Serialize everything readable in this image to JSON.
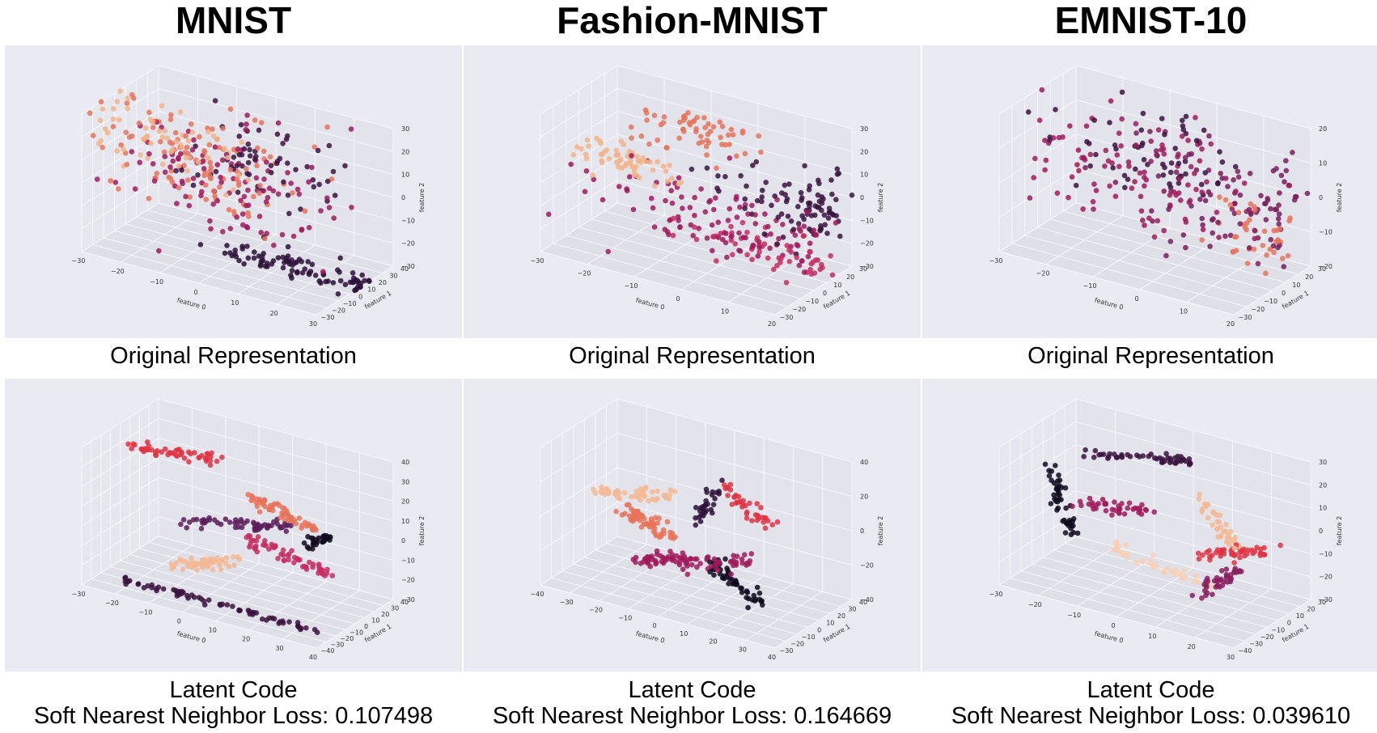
{
  "chart_data": [
    {
      "type": "scatter",
      "title": "MNIST",
      "panels": [
        {
          "caption": "Original Representation",
          "xlabel": "feature 0",
          "ylabel": "feature 1",
          "zlabel": "feature 2",
          "xticks": [
            -30,
            -20,
            -10,
            0,
            10,
            20,
            30
          ],
          "yticks": [
            -30,
            -20,
            -10,
            0,
            10,
            20,
            30,
            40
          ],
          "zticks": [
            -30,
            -20,
            -10,
            0,
            10,
            20,
            30
          ],
          "structure": "blob",
          "clusters": [
            {
              "x": -10,
              "y": 0,
              "z": 10,
              "sx": 14,
              "sy": 14,
              "sz": 10,
              "color": "#e8735a",
              "n": 110
            },
            {
              "x": 0,
              "y": 0,
              "z": 5,
              "sx": 14,
              "sy": 14,
              "sz": 12,
              "color": "#a11a5b",
              "n": 110
            },
            {
              "x": 5,
              "y": 5,
              "z": 15,
              "sx": 10,
              "sy": 10,
              "sz": 8,
              "color": "#3b1340",
              "n": 60
            },
            {
              "x": -15,
              "y": -5,
              "z": 18,
              "sx": 10,
              "sy": 10,
              "sz": 6,
              "color": "#f3b38a",
              "n": 60
            },
            {
              "x": 15,
              "y": 10,
              "z": -30,
              "sx": 12,
              "sy": 6,
              "sz": 3,
              "color": "#2d1038",
              "n": 90
            }
          ]
        },
        {
          "caption": "Latent Code",
          "subcaption": "Soft Nearest Neighbor Loss: 0.107498",
          "xlabel": "feature 0",
          "ylabel": "feature 1",
          "zlabel": "feature 2",
          "xticks": [
            -30,
            -20,
            -10,
            0,
            10,
            20,
            30,
            40
          ],
          "yticks": [
            -40,
            -30,
            -20,
            -10,
            0,
            10,
            20,
            30,
            40
          ],
          "zticks": [
            -30,
            -20,
            -10,
            0,
            10,
            20,
            30,
            40
          ],
          "structure": "arcs",
          "clusters": [
            {
              "x": -15,
              "y": 5,
              "z": 30,
              "sx": 8,
              "sy": 2,
              "sz": 2,
              "color": "#e13342",
              "n": 50
            },
            {
              "x": 15,
              "y": 10,
              "z": 12,
              "sx": 6,
              "sy": 2,
              "sz": 3,
              "color": "#e8735a",
              "n": 60
            },
            {
              "x": 5,
              "y": 0,
              "z": 5,
              "sx": 10,
              "sy": 3,
              "sz": 4,
              "color": "#5c1e5b",
              "n": 60
            },
            {
              "x": 20,
              "y": 0,
              "z": -5,
              "sx": 8,
              "sy": 3,
              "sz": 3,
              "color": "#c72d61",
              "n": 60
            },
            {
              "x": -5,
              "y": 0,
              "z": -20,
              "sx": 5,
              "sy": 3,
              "sz": 3,
              "color": "#f5b894",
              "n": 50
            },
            {
              "x": 5,
              "y": -20,
              "z": -35,
              "sx": 18,
              "sy": 2,
              "sz": 2,
              "color": "#3b1340",
              "n": 70
            },
            {
              "x": 28,
              "y": 5,
              "z": 5,
              "sx": 2,
              "sy": 2,
              "sz": 3,
              "color": "#0f0a1e",
              "n": 30
            }
          ]
        }
      ]
    },
    {
      "type": "scatter",
      "title": "Fashion-MNIST",
      "panels": [
        {
          "caption": "Original Representation",
          "xlabel": "feature 0",
          "ylabel": "feature 1",
          "zlabel": "feature 2",
          "xticks": [
            -30,
            -20,
            -10,
            0,
            10,
            20
          ],
          "yticks": [
            -30,
            -20,
            -10,
            0,
            10,
            20,
            30
          ],
          "zticks": [
            -30,
            -20,
            -10,
            0,
            10,
            20,
            30
          ],
          "structure": "loop",
          "clusters": [
            {
              "x": -5,
              "y": 0,
              "z": 25,
              "sx": 6,
              "sy": 4,
              "sz": 6,
              "color": "#e8735a",
              "n": 60
            },
            {
              "x": -20,
              "y": 0,
              "z": 5,
              "sx": 6,
              "sy": 4,
              "sz": 3,
              "color": "#f3b38a",
              "n": 60
            },
            {
              "x": 0,
              "y": 0,
              "z": -10,
              "sx": 14,
              "sy": 10,
              "sz": 8,
              "color": "#a11a5b",
              "n": 110
            },
            {
              "x": 15,
              "y": 10,
              "z": 0,
              "sx": 8,
              "sy": 10,
              "sz": 8,
              "color": "#3b1340",
              "n": 90
            },
            {
              "x": 10,
              "y": 5,
              "z": -20,
              "sx": 10,
              "sy": 6,
              "sz": 5,
              "color": "#c72d61",
              "n": 60
            }
          ]
        },
        {
          "caption": "Latent Code",
          "subcaption": "Soft Nearest Neighbor Loss: 0.164669",
          "xlabel": "feature 0",
          "ylabel": "feature 1",
          "zlabel": "feature 2",
          "xticks": [
            -40,
            -30,
            -20,
            -10,
            0,
            10,
            20,
            30,
            40
          ],
          "yticks": [
            -30,
            -20,
            -10,
            0,
            10,
            20,
            30,
            40
          ],
          "zticks": [
            -40,
            -20,
            0,
            20,
            40
          ],
          "structure": "strands",
          "clusters": [
            {
              "x": -20,
              "y": 0,
              "z": 10,
              "sx": 8,
              "sy": 3,
              "sz": 3,
              "color": "#f5b894",
              "n": 50
            },
            {
              "x": -15,
              "y": 0,
              "z": -5,
              "sx": 5,
              "sy": 3,
              "sz": 4,
              "color": "#e8735a",
              "n": 60
            },
            {
              "x": 5,
              "y": 0,
              "z": 15,
              "sx": 2,
              "sy": 2,
              "sz": 8,
              "color": "#2d1038",
              "n": 30
            },
            {
              "x": 20,
              "y": 0,
              "z": 20,
              "sx": 5,
              "sy": 2,
              "sz": 6,
              "color": "#e13342",
              "n": 40
            },
            {
              "x": 0,
              "y": 0,
              "z": -20,
              "sx": 12,
              "sy": 5,
              "sz": 5,
              "color": "#a11a5b",
              "n": 90
            },
            {
              "x": 15,
              "y": 0,
              "z": -25,
              "sx": 5,
              "sy": 3,
              "sz": 5,
              "color": "#0f0a1e",
              "n": 50
            }
          ]
        }
      ]
    },
    {
      "type": "scatter",
      "title": "EMNIST-10",
      "panels": [
        {
          "caption": "Original Representation",
          "xlabel": "feature 0",
          "ylabel": "feature 1",
          "zlabel": "feature 2",
          "xticks": [
            -30,
            -20,
            -10,
            0,
            10,
            20
          ],
          "yticks": [
            -30,
            -20,
            -10,
            0,
            10,
            20,
            30
          ],
          "zticks": [
            -20,
            -10,
            0,
            10,
            20
          ],
          "structure": "ring",
          "clusters": [
            {
              "x": -10,
              "y": 0,
              "z": 5,
              "sx": 12,
              "sy": 10,
              "sz": 8,
              "color": "#a11a5b",
              "n": 110
            },
            {
              "x": 10,
              "y": 5,
              "z": 0,
              "sx": 12,
              "sy": 10,
              "sz": 8,
              "color": "#7a1e5c",
              "n": 90
            },
            {
              "x": -5,
              "y": 0,
              "z": 10,
              "sx": 10,
              "sy": 8,
              "sz": 6,
              "color": "#3b1340",
              "n": 60
            },
            {
              "x": 15,
              "y": 5,
              "z": -8,
              "sx": 6,
              "sy": 6,
              "sz": 5,
              "color": "#e8735a",
              "n": 40
            }
          ]
        },
        {
          "caption": "Latent Code",
          "subcaption": "Soft Nearest Neighbor Loss: 0.039610",
          "xlabel": "feature 0",
          "ylabel": "feature 1",
          "zlabel": "feature 2",
          "xticks": [
            -30,
            -20,
            -10,
            0,
            10,
            20,
            30
          ],
          "yticks": [
            -40,
            -30,
            -20,
            -10,
            0,
            10,
            20,
            30
          ],
          "zticks": [
            -30,
            -20,
            -10,
            0,
            10,
            20,
            30
          ],
          "structure": "strands",
          "clusters": [
            {
              "x": -5,
              "y": 0,
              "z": 25,
              "sx": 8,
              "sy": 2,
              "sz": 3,
              "color": "#3b1340",
              "n": 50
            },
            {
              "x": -25,
              "y": 0,
              "z": -5,
              "sx": 2,
              "sy": 2,
              "sz": 10,
              "color": "#0f0a1e",
              "n": 50
            },
            {
              "x": -12,
              "y": 0,
              "z": 0,
              "sx": 6,
              "sy": 2,
              "sz": 2,
              "color": "#a11a5b",
              "n": 40
            },
            {
              "x": 15,
              "y": 0,
              "z": 5,
              "sx": 3,
              "sy": 2,
              "sz": 6,
              "color": "#f5b894",
              "n": 40
            },
            {
              "x": 20,
              "y": 0,
              "z": -5,
              "sx": 6,
              "sy": 3,
              "sz": 4,
              "color": "#e13342",
              "n": 50
            },
            {
              "x": 0,
              "y": 0,
              "z": -20,
              "sx": 8,
              "sy": 2,
              "sz": 2,
              "color": "#f8d0b6",
              "n": 40
            },
            {
              "x": 15,
              "y": 0,
              "z": -20,
              "sx": 3,
              "sy": 2,
              "sz": 6,
              "color": "#8a1d5e",
              "n": 40
            }
          ]
        }
      ]
    }
  ]
}
